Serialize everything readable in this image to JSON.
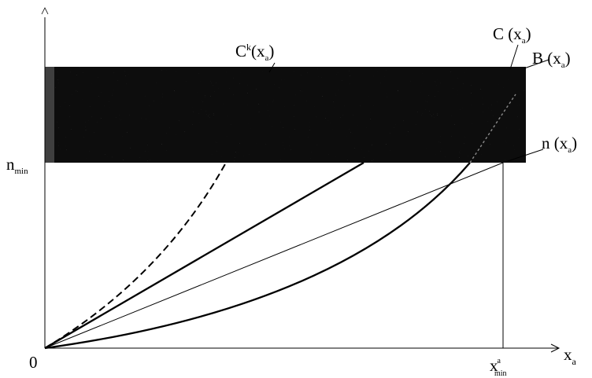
{
  "diagram": {
    "y_axis": {
      "min_label_main": "n",
      "min_label_sub": "min"
    },
    "x_axis": {
      "end_label_main": "x",
      "end_label_sub": "a"
    },
    "origin_label": "0",
    "x_marker": {
      "main": "x",
      "sup": "a",
      "sub": "min"
    },
    "curves": [
      {
        "key": "ck",
        "label": {
          "main": "C",
          "sup": "k",
          "arg": "(x",
          "argsub": "a",
          "close": ")"
        }
      },
      {
        "key": "c",
        "label": {
          "main": "C",
          "sup": "",
          "arg": " (x",
          "argsub": "a",
          "close": ")"
        }
      },
      {
        "key": "b",
        "label": {
          "main": "B",
          "sup": "",
          "arg": " (x",
          "argsub": "a",
          "close": ")"
        }
      },
      {
        "key": "n",
        "label": {
          "main": "n",
          "sup": "",
          "arg": " (x",
          "argsub": "a",
          "close": ")"
        }
      }
    ],
    "colors": {
      "band": "#0d0d0d",
      "ink": "#000000",
      "background": "#ffffff"
    }
  }
}
